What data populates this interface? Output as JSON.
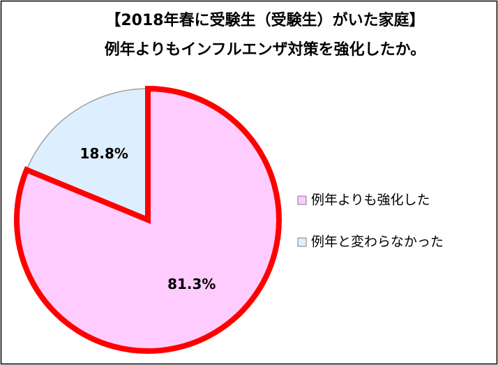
{
  "chart_data": {
    "type": "pie",
    "title": "【2018年春に受験生（受験生）がいた家庭】",
    "subtitle": "例年よりもインフルエンザ対策を強化したか。",
    "categories": [
      "例年よりも強化した",
      "例年と変わらなかった"
    ],
    "values": [
      81.3,
      18.8
    ],
    "value_labels": [
      "81.3%",
      "18.8%"
    ],
    "colors": [
      "#ffccff",
      "#ddeeff"
    ],
    "edgecolors": [
      "#ff0000",
      "#a0a0a0"
    ],
    "legend": "right"
  }
}
